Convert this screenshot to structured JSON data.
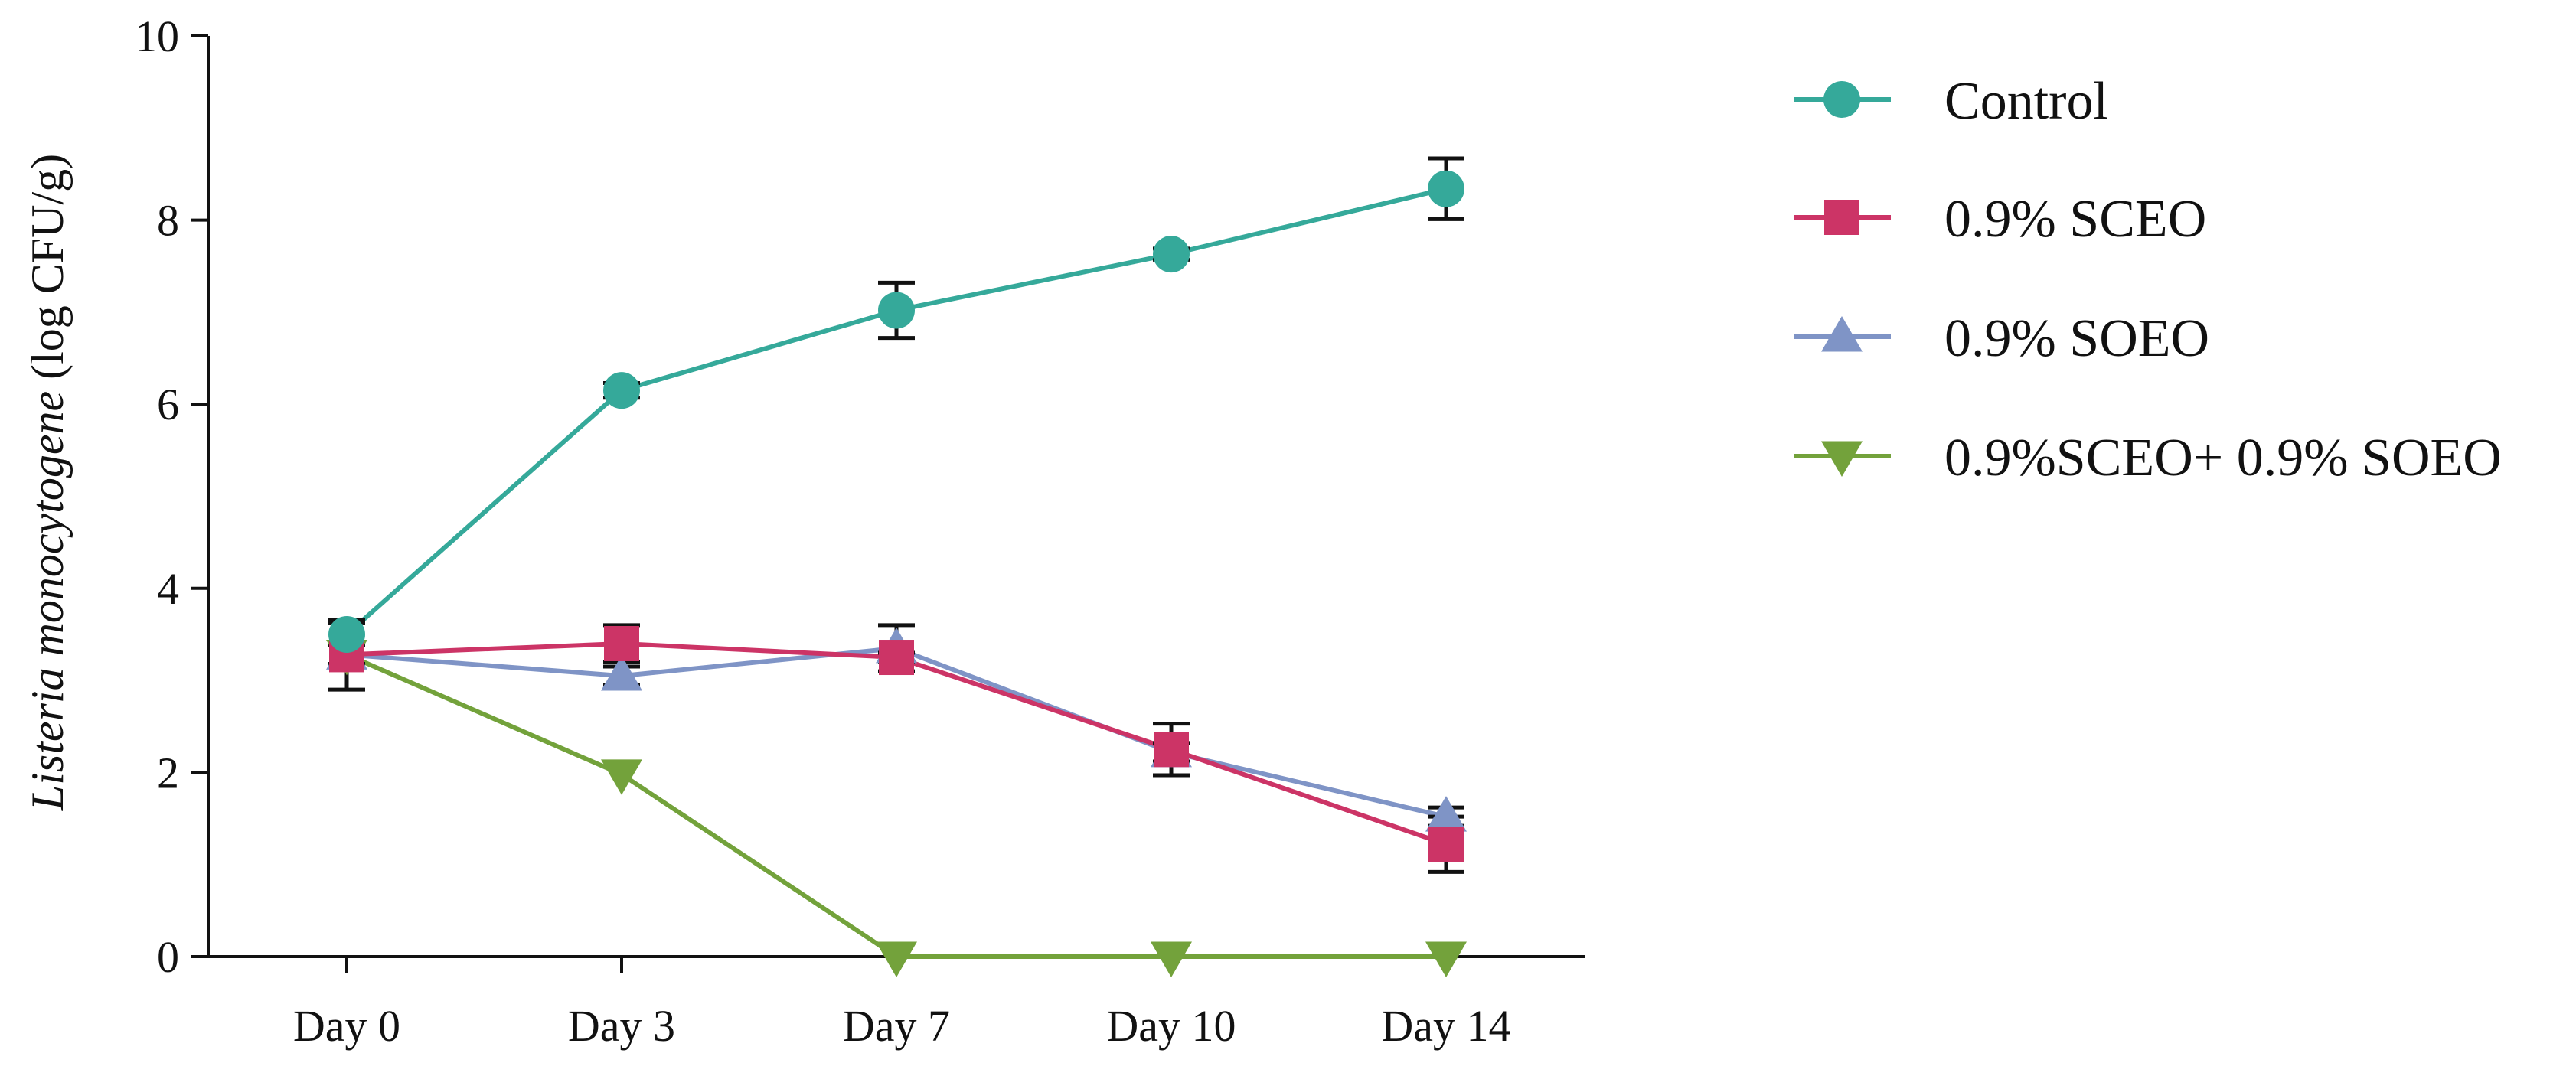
{
  "chart_data": {
    "type": "line",
    "title": "",
    "xlabel": "",
    "ylabel_italic": "Listeria monocytogene",
    "ylabel_rest": " (log CFU/g)",
    "categories": [
      "Day 0",
      "Day 3",
      "Day 7",
      "Day 10",
      "Day 14"
    ],
    "ylim": [
      0,
      10
    ],
    "yticks": [
      "0",
      "2",
      "4",
      "6",
      "8",
      "10"
    ],
    "grid": false,
    "legend_position": "right",
    "series": [
      {
        "name": "Control",
        "color": "#35a99a",
        "marker": "circle",
        "values": [
          3.5,
          6.15,
          7.02,
          7.63,
          8.34
        ],
        "errors": [
          0.12,
          0.08,
          0.3,
          0.06,
          0.33
        ]
      },
      {
        "name": "0.9% SCEO",
        "color": "#cc3466",
        "marker": "square",
        "values": [
          3.28,
          3.4,
          3.25,
          2.25,
          1.22
        ],
        "errors": [
          0.38,
          0.2,
          0.05,
          0.28,
          0.3
        ]
      },
      {
        "name": "0.9% SOEO",
        "color": "#7f94c6",
        "marker": "triangle-up",
        "values": [
          3.28,
          3.05,
          3.35,
          2.22,
          1.52
        ],
        "errors": [
          0.1,
          0.1,
          0.25,
          0.1,
          0.1
        ]
      },
      {
        "name": "0.9%SCEO+ 0.9% SOEO",
        "color": "#73a23b",
        "marker": "triangle-down",
        "values": [
          3.28,
          1.98,
          0,
          0,
          0
        ],
        "errors": [
          0,
          0,
          0,
          0,
          0
        ]
      }
    ]
  }
}
